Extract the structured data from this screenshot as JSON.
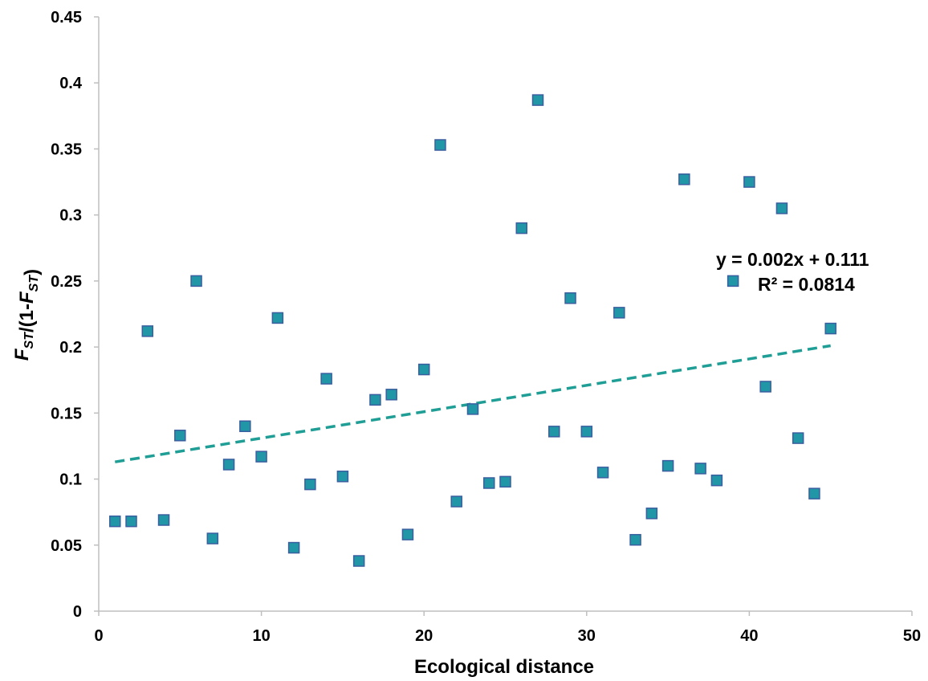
{
  "chart_data": {
    "type": "scatter",
    "xlabel": "Ecological distance",
    "ylabel": {
      "parts": [
        {
          "text": "F",
          "sub": false
        },
        {
          "text": "ST",
          "sub": true
        },
        {
          "text": "/(1-",
          "sub": false
        },
        {
          "text": "F",
          "sub": false
        },
        {
          "text": "ST",
          "sub": true
        },
        {
          "text": ")",
          "sub": false
        }
      ]
    },
    "xlim": [
      0,
      50
    ],
    "ylim": [
      0,
      0.45
    ],
    "x_ticks": [
      0,
      10,
      20,
      30,
      40,
      50
    ],
    "x_tick_labels": [
      "0",
      "10",
      "20",
      "30",
      "40",
      "50"
    ],
    "y_ticks": [
      0,
      0.05,
      0.1,
      0.15,
      0.2,
      0.25,
      0.3,
      0.35,
      0.4,
      0.45
    ],
    "y_tick_labels": [
      "0",
      "0.05",
      "0.1",
      "0.15",
      "0.2",
      "0.25",
      "0.3",
      "0.35",
      "0.4",
      "0.45"
    ],
    "grid": false,
    "series": [
      {
        "marker_color": "#2196a6",
        "marker_edge": "#3a5fa0",
        "points": [
          [
            1,
            0.068
          ],
          [
            2,
            0.068
          ],
          [
            3,
            0.212
          ],
          [
            4,
            0.069
          ],
          [
            5,
            0.133
          ],
          [
            6,
            0.25
          ],
          [
            7,
            0.055
          ],
          [
            8,
            0.111
          ],
          [
            9,
            0.14
          ],
          [
            10,
            0.117
          ],
          [
            11,
            0.222
          ],
          [
            12,
            0.048
          ],
          [
            13,
            0.096
          ],
          [
            14,
            0.176
          ],
          [
            15,
            0.102
          ],
          [
            16,
            0.038
          ],
          [
            17,
            0.16
          ],
          [
            18,
            0.164
          ],
          [
            19,
            0.058
          ],
          [
            20,
            0.183
          ],
          [
            21,
            0.353
          ],
          [
            22,
            0.083
          ],
          [
            23,
            0.153
          ],
          [
            24,
            0.097
          ],
          [
            25,
            0.098
          ],
          [
            26,
            0.29
          ],
          [
            27,
            0.387
          ],
          [
            28,
            0.136
          ],
          [
            29,
            0.237
          ],
          [
            30,
            0.136
          ],
          [
            31,
            0.105
          ],
          [
            32,
            0.226
          ],
          [
            33,
            0.054
          ],
          [
            34,
            0.074
          ],
          [
            35,
            0.11
          ],
          [
            36,
            0.327
          ],
          [
            37,
            0.108
          ],
          [
            38,
            0.099
          ],
          [
            39,
            0.25
          ],
          [
            40,
            0.325
          ],
          [
            41,
            0.17
          ],
          [
            42,
            0.305
          ],
          [
            43,
            0.131
          ],
          [
            44,
            0.089
          ],
          [
            45,
            0.214
          ]
        ]
      }
    ],
    "trendline": {
      "style": "dashed",
      "color": "#1f9e96",
      "slope": 0.002,
      "intercept": 0.111,
      "x_range": [
        1,
        45
      ]
    },
    "annotations": {
      "equation": "y = 0.002x + 0.111",
      "r_squared": "R² = 0.0814"
    }
  }
}
